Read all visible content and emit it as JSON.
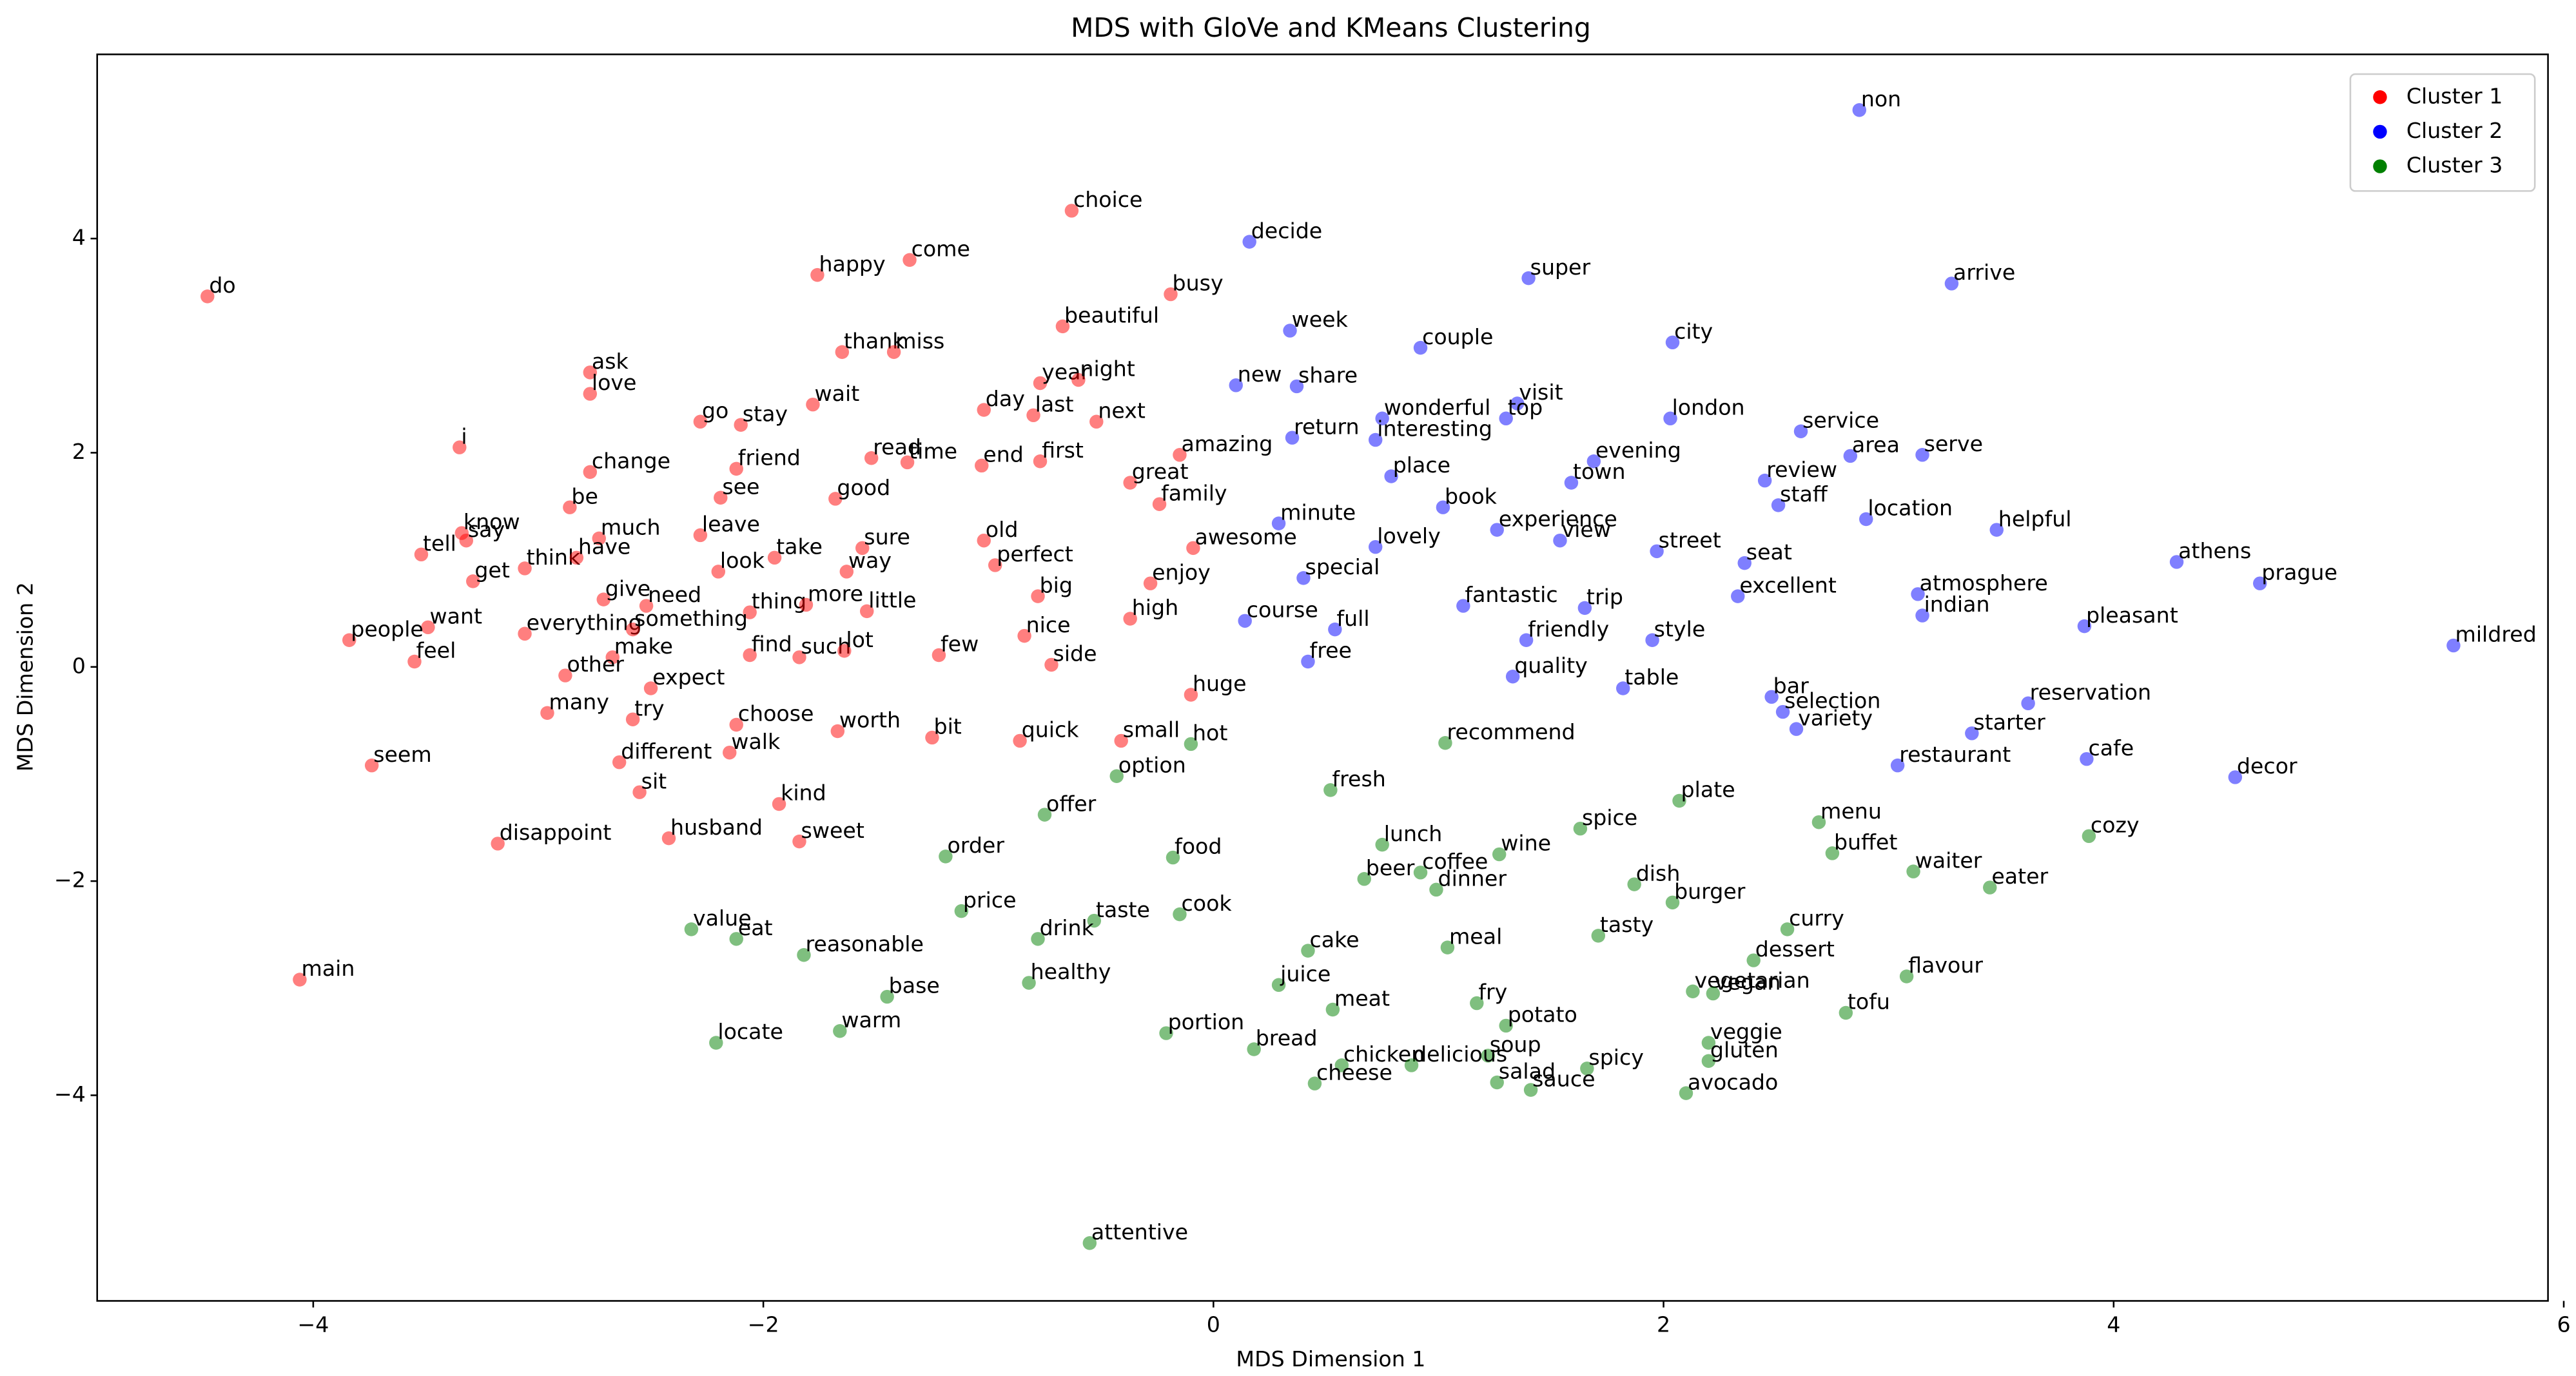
{
  "chart_data": {
    "type": "scatter",
    "title": "MDS with GloVe and KMeans Clustering",
    "x_label": "MDS Dimension 1",
    "y_label": "MDS Dimension 2",
    "xlim": [
      -4.96,
      5.93
    ],
    "ylim": [
      -5.92,
      5.72
    ],
    "xticks": [
      {
        "value": -4,
        "label": "−4"
      },
      {
        "value": -2,
        "label": "−2"
      },
      0,
      2,
      4,
      6
    ],
    "yticks": [
      {
        "value": -4,
        "label": "−4"
      },
      {
        "value": -2,
        "label": "−2"
      },
      0,
      2,
      4
    ],
    "grid": false,
    "legend": "upper right",
    "marker_opacity": 0.5,
    "series": [
      {
        "name": "Cluster 1",
        "color": "#ff0000",
        "labels": [
          "do",
          "happy",
          "come",
          "choice",
          "busy",
          "beautiful",
          "thank",
          "miss",
          "ask",
          "love",
          "year",
          "night",
          "i",
          "go",
          "stay",
          "wait",
          "day",
          "last",
          "next",
          "change",
          "friend",
          "read",
          "time",
          "end",
          "first",
          "amazing",
          "be",
          "see",
          "good",
          "great",
          "family",
          "know",
          "say",
          "tell",
          "much",
          "leave",
          "think",
          "have",
          "take",
          "sure",
          "old",
          "awesome",
          "get",
          "look",
          "way",
          "perfect",
          "enjoy",
          "give",
          "need",
          "thing",
          "more",
          "little",
          "big",
          "high",
          "want",
          "people",
          "everything",
          "something",
          "nice",
          "feel",
          "make",
          "find",
          "such",
          "lot",
          "few",
          "side",
          "other",
          "expect",
          "huge",
          "many",
          "try",
          "choose",
          "worth",
          "bit",
          "quick",
          "small",
          "seem",
          "different",
          "walk",
          "sit",
          "kind",
          "disappoint",
          "husband",
          "sweet",
          "main"
        ],
        "x": [
          -4.47,
          -1.76,
          -1.35,
          -0.63,
          -0.19,
          -0.67,
          -1.65,
          -1.42,
          -2.77,
          -2.77,
          -0.77,
          -0.6,
          -3.35,
          -2.28,
          -2.1,
          -1.78,
          -1.02,
          -0.8,
          -0.52,
          -2.77,
          -2.12,
          -1.52,
          -1.36,
          -1.03,
          -0.77,
          -0.15,
          -2.86,
          -2.19,
          -1.68,
          -0.37,
          -0.24,
          -3.34,
          -3.32,
          -3.52,
          -2.73,
          -2.28,
          -3.06,
          -2.83,
          -1.95,
          -1.56,
          -1.02,
          -0.09,
          -3.29,
          -2.2,
          -1.63,
          -0.97,
          -0.28,
          -2.71,
          -2.52,
          -2.06,
          -1.81,
          -1.54,
          -0.78,
          -0.37,
          -3.49,
          -3.84,
          -3.06,
          -2.58,
          -0.84,
          -3.55,
          -2.67,
          -2.06,
          -1.84,
          -1.64,
          -1.22,
          -0.72,
          -2.88,
          -2.5,
          -0.1,
          -2.96,
          -2.58,
          -2.12,
          -1.67,
          -1.25,
          -0.86,
          -0.41,
          -3.74,
          -2.64,
          -2.15,
          -2.55,
          -1.93,
          -3.18,
          -2.42,
          -1.84,
          -4.06
        ],
        "y": [
          3.46,
          3.66,
          3.8,
          4.26,
          3.48,
          3.18,
          2.94,
          2.94,
          2.75,
          2.55,
          2.65,
          2.68,
          2.05,
          2.29,
          2.26,
          2.45,
          2.4,
          2.35,
          2.29,
          1.82,
          1.85,
          1.95,
          1.91,
          1.88,
          1.92,
          1.98,
          1.49,
          1.58,
          1.57,
          1.72,
          1.52,
          1.25,
          1.18,
          1.05,
          1.2,
          1.23,
          0.92,
          1.02,
          1.02,
          1.11,
          1.18,
          1.11,
          0.8,
          0.89,
          0.89,
          0.95,
          0.78,
          0.63,
          0.57,
          0.51,
          0.58,
          0.52,
          0.66,
          0.45,
          0.37,
          0.25,
          0.31,
          0.35,
          0.29,
          0.05,
          0.09,
          0.11,
          0.09,
          0.15,
          0.11,
          0.02,
          -0.08,
          -0.2,
          -0.26,
          -0.43,
          -0.49,
          -0.54,
          -0.6,
          -0.66,
          -0.69,
          -0.69,
          -0.92,
          -0.89,
          -0.8,
          -1.17,
          -1.28,
          -1.65,
          -1.6,
          -1.63,
          -2.92
        ]
      },
      {
        "name": "Cluster 2",
        "color": "#0000ff",
        "labels": [
          "non",
          "decide",
          "super",
          "arrive",
          "week",
          "couple",
          "city",
          "new",
          "share",
          "visit",
          "wonderful",
          "top",
          "london",
          "return",
          "interesting",
          "service",
          "area",
          "serve",
          "evening",
          "place",
          "town",
          "review",
          "staff",
          "book",
          "location",
          "helpful",
          "minute",
          "experience",
          "view",
          "lovely",
          "street",
          "athens",
          "seat",
          "special",
          "prague",
          "atmosphere",
          "excellent",
          "fantastic",
          "trip",
          "indian",
          "course",
          "full",
          "pleasant",
          "friendly",
          "style",
          "mildred",
          "free",
          "quality",
          "table",
          "bar",
          "reservation",
          "selection",
          "variety",
          "starter",
          "cafe",
          "restaurant",
          "decor"
        ],
        "x": [
          2.87,
          0.16,
          1.4,
          3.28,
          0.34,
          0.92,
          2.04,
          0.1,
          0.37,
          1.35,
          0.75,
          1.3,
          2.03,
          0.35,
          0.72,
          2.61,
          2.83,
          3.15,
          1.69,
          0.79,
          1.59,
          2.45,
          2.51,
          1.02,
          2.9,
          3.48,
          0.29,
          1.26,
          1.54,
          0.72,
          1.97,
          4.28,
          2.36,
          0.4,
          4.65,
          3.13,
          2.33,
          1.11,
          1.65,
          3.15,
          0.14,
          0.54,
          3.87,
          1.39,
          1.95,
          5.51,
          0.42,
          1.33,
          1.82,
          2.48,
          3.62,
          2.53,
          2.59,
          3.37,
          3.88,
          3.04,
          4.54
        ],
        "y": [
          5.2,
          3.97,
          3.63,
          3.58,
          3.14,
          2.98,
          3.03,
          2.63,
          2.62,
          2.46,
          2.32,
          2.32,
          2.32,
          2.14,
          2.12,
          2.2,
          1.97,
          1.98,
          1.92,
          1.78,
          1.72,
          1.74,
          1.51,
          1.49,
          1.38,
          1.28,
          1.34,
          1.28,
          1.18,
          1.12,
          1.08,
          0.98,
          0.97,
          0.83,
          0.78,
          0.68,
          0.66,
          0.57,
          0.55,
          0.48,
          0.43,
          0.35,
          0.38,
          0.25,
          0.25,
          0.2,
          0.05,
          -0.09,
          -0.2,
          -0.28,
          -0.34,
          -0.42,
          -0.58,
          -0.62,
          -0.86,
          -0.92,
          -1.03
        ]
      },
      {
        "name": "Cluster 3",
        "color": "#008000",
        "labels": [
          "recommend",
          "hot",
          "option",
          "fresh",
          "plate",
          "offer",
          "menu",
          "spice",
          "cozy",
          "lunch",
          "wine",
          "buffet",
          "order",
          "food",
          "coffee",
          "waiter",
          "beer",
          "dish",
          "dinner",
          "eater",
          "burger",
          "price",
          "cook",
          "taste",
          "value",
          "curry",
          "eat",
          "drink",
          "tasty",
          "cake",
          "meal",
          "reasonable",
          "dessert",
          "flavour",
          "healthy",
          "juice",
          "vegetarian",
          "vegan",
          "base",
          "fry",
          "meat",
          "tofu",
          "potato",
          "warm",
          "portion",
          "locate",
          "bread",
          "veggie",
          "soup",
          "chicken",
          "gluten",
          "delicious",
          "spicy",
          "salad",
          "cheese",
          "sauce",
          "avocado",
          "attentive"
        ],
        "x": [
          1.03,
          -0.1,
          -0.43,
          0.52,
          2.07,
          -0.75,
          2.69,
          1.63,
          3.89,
          0.75,
          1.27,
          2.75,
          -1.19,
          -0.18,
          0.92,
          3.11,
          0.67,
          1.87,
          0.99,
          3.45,
          2.04,
          -1.12,
          -0.15,
          -0.53,
          -2.32,
          2.55,
          -2.12,
          -0.78,
          1.71,
          0.42,
          1.04,
          -1.82,
          2.4,
          3.08,
          -0.82,
          0.29,
          2.13,
          2.22,
          -1.45,
          1.17,
          0.53,
          2.81,
          1.3,
          -1.66,
          -0.21,
          -2.21,
          0.18,
          2.2,
          1.22,
          0.57,
          2.2,
          0.88,
          1.66,
          1.26,
          0.45,
          1.41,
          2.1,
          -0.55
        ],
        "y": [
          -0.71,
          -0.72,
          -1.02,
          -1.15,
          -1.25,
          -1.38,
          -1.45,
          -1.51,
          -1.58,
          -1.66,
          -1.75,
          -1.74,
          -1.77,
          -1.78,
          -1.92,
          -1.91,
          -1.98,
          -2.03,
          -2.08,
          -2.06,
          -2.2,
          -2.28,
          -2.31,
          -2.37,
          -2.45,
          -2.45,
          -2.54,
          -2.54,
          -2.51,
          -2.65,
          -2.62,
          -2.69,
          -2.74,
          -2.89,
          -2.95,
          -2.97,
          -3.03,
          -3.05,
          -3.08,
          -3.14,
          -3.2,
          -3.23,
          -3.35,
          -3.4,
          -3.42,
          -3.51,
          -3.57,
          -3.51,
          -3.63,
          -3.72,
          -3.68,
          -3.72,
          -3.75,
          -3.88,
          -3.89,
          -3.95,
          -3.98,
          -5.38
        ]
      }
    ]
  }
}
